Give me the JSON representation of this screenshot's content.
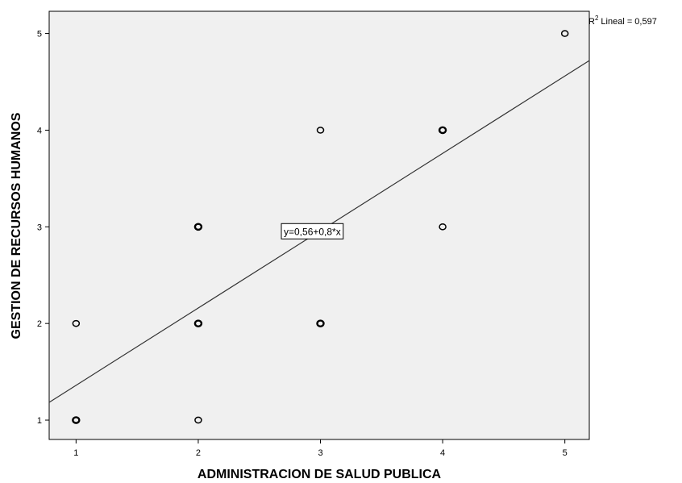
{
  "chart_data": {
    "type": "scatter",
    "xlabel": "ADMINISTRACION DE SALUD PUBLICA",
    "ylabel": "GESTION DE RECURSOS HUMANOS",
    "xlim": [
      0.78,
      5.2
    ],
    "ylim": [
      0.8,
      5.23
    ],
    "xticks": [
      1,
      2,
      3,
      4,
      5
    ],
    "yticks": [
      1,
      2,
      3,
      4,
      5
    ],
    "points": [
      {
        "x": 1,
        "y": 1,
        "heavy": true
      },
      {
        "x": 1,
        "y": 2,
        "heavy": false
      },
      {
        "x": 2,
        "y": 1,
        "heavy": false
      },
      {
        "x": 2,
        "y": 2,
        "heavy": true
      },
      {
        "x": 2,
        "y": 3,
        "heavy": true
      },
      {
        "x": 3,
        "y": 2,
        "heavy": true
      },
      {
        "x": 3,
        "y": 4,
        "heavy": false
      },
      {
        "x": 4,
        "y": 3,
        "heavy": false
      },
      {
        "x": 4,
        "y": 4,
        "heavy": true
      },
      {
        "x": 5,
        "y": 5,
        "heavy": false
      }
    ],
    "fit_line": {
      "intercept": 0.56,
      "slope": 0.8
    },
    "equation_label": "y=0,56+0,8*x",
    "equation_anchor": {
      "x": 2.68,
      "y": 2.95
    },
    "r2_label": "Lineal = 0,597",
    "r2_symbol": "R",
    "r2_superscript": "2",
    "grid": false,
    "plot_background": "#f0f0f0",
    "marker_color": "#000000",
    "line_color": "#333333"
  }
}
